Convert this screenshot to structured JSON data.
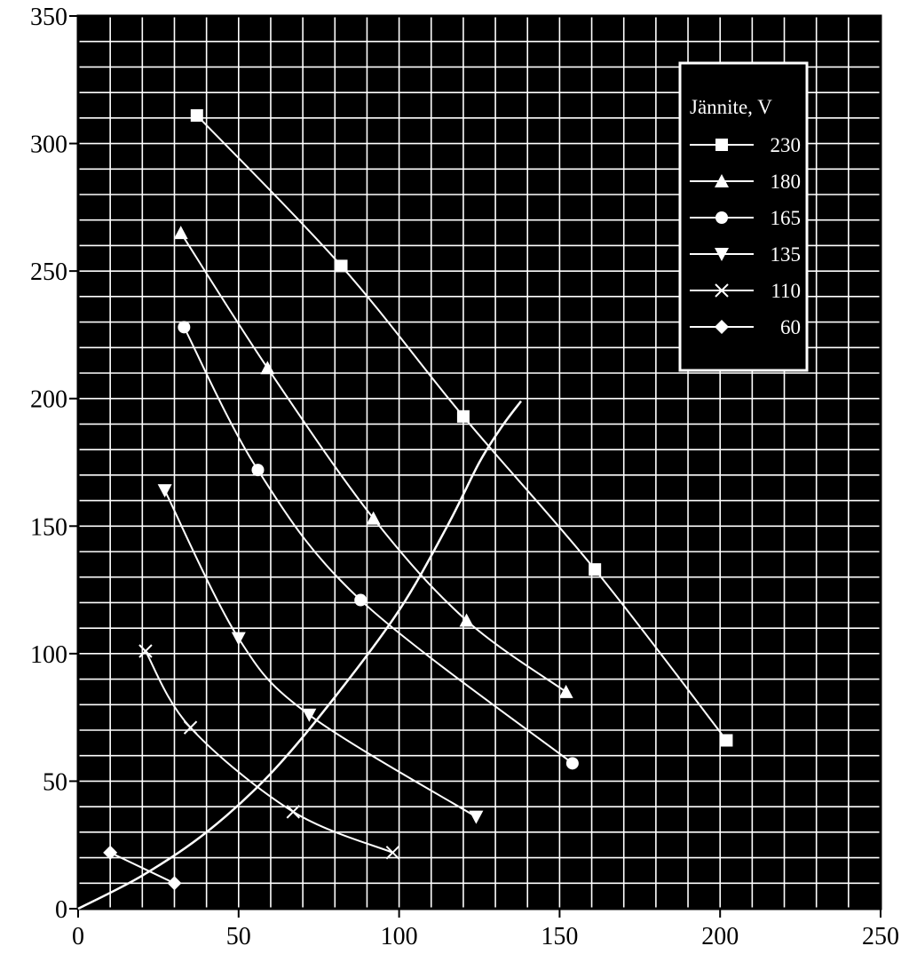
{
  "chart_data": {
    "type": "line",
    "title": "",
    "xlabel": "",
    "ylabel": "",
    "xlim": [
      0,
      250
    ],
    "ylim": [
      0,
      350
    ],
    "x_ticks": [
      "0",
      "50",
      "100",
      "150",
      "200",
      "250"
    ],
    "y_ticks": [
      "0",
      "50",
      "100",
      "150",
      "200",
      "250",
      "300",
      "350"
    ],
    "grid": true,
    "legend": {
      "title": "Jännite, V",
      "position": "top-right"
    },
    "colors": {
      "plot_background": "#000000",
      "lines": "#ffffff",
      "page": "#ffffff"
    },
    "series": [
      {
        "name": "230",
        "marker": "square",
        "x": [
          37,
          82,
          120,
          161,
          202
        ],
        "y": [
          311,
          252,
          193,
          133,
          66
        ]
      },
      {
        "name": "180",
        "marker": "triangle-up",
        "x": [
          32,
          59,
          92,
          121,
          152
        ],
        "y": [
          265,
          212,
          153,
          113,
          85
        ]
      },
      {
        "name": "165",
        "marker": "circle",
        "x": [
          33,
          56,
          88,
          154
        ],
        "y": [
          228,
          172,
          121,
          57
        ]
      },
      {
        "name": "135",
        "marker": "triangle-down",
        "x": [
          27,
          50,
          72,
          124
        ],
        "y": [
          164,
          106,
          76,
          36
        ]
      },
      {
        "name": "110",
        "marker": "x",
        "x": [
          21,
          35,
          67,
          98
        ],
        "y": [
          101,
          71,
          38,
          22
        ]
      },
      {
        "name": "60",
        "marker": "diamond",
        "x": [
          10,
          30
        ],
        "y": [
          22,
          10
        ]
      }
    ],
    "curve": {
      "x": [
        0,
        20,
        40,
        60,
        80,
        100,
        115,
        125,
        132,
        138
      ],
      "y": [
        0,
        13,
        30,
        53,
        83,
        117,
        150,
        175,
        189,
        199
      ]
    }
  }
}
